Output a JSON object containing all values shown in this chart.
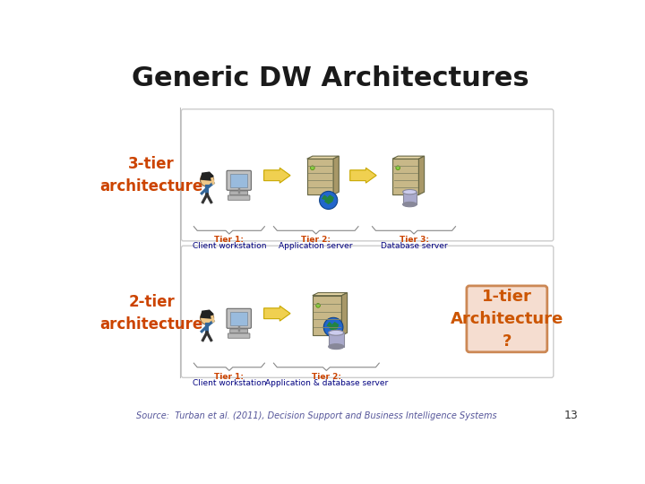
{
  "title": "Generic DW Architectures",
  "title_fontsize": 22,
  "title_fontweight": "bold",
  "title_color": "#1a1a1a",
  "label_3tier": "3-tier\narchitecture",
  "label_2tier": "2-tier\narchitecture",
  "label_fontsize": 12,
  "label_color": "#cc4400",
  "box_border": "#cccccc",
  "tier_label_color": "#cc4400",
  "tier_sublabel_color": "#000080",
  "tier1_box_facecolor": "#f5ddd0",
  "tier1_box_edgecolor": "#cc8855",
  "tier1_text_color": "#cc5500",
  "tier1_text": "1-tier\nArchitecture\n?",
  "tier1_fontsize": 13,
  "source_text": "Source:  Turban et al. (2011), Decision Support and Business Intelligence Systems",
  "source_fontsize": 7,
  "source_color": "#555599",
  "page_number": "13",
  "page_fontsize": 9,
  "bg_color": "#ffffff",
  "server_color": "#c8b888",
  "server_dark": "#a89868",
  "server_lines": "#888866",
  "globe_blue": "#2255cc",
  "globe_green": "#228822",
  "db_cyl_color": "#aaaacc",
  "db_cyl_dark": "#888899",
  "arrow_color": "#f0d050",
  "arrow_edge": "#c8a800",
  "person_skin": "#f0c888",
  "person_hair": "#1a1a1a",
  "monitor_body": "#c8c8c8",
  "monitor_screen": "#88aacc",
  "keyboard_color": "#b8b8b8",
  "brace_color": "#888888"
}
